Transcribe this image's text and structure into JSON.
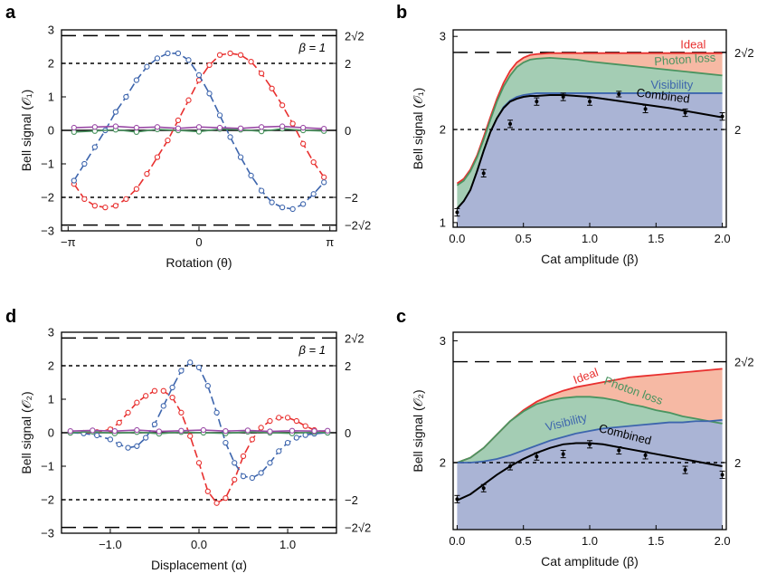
{
  "colors": {
    "red": "#e8302f",
    "blue": "#3d65ad",
    "green": "#4a9460",
    "purple": "#9a4aa6",
    "ideal_fill": "#f6b9a4",
    "photon_fill": "#a4cdb4",
    "visibility_fill": "#aab4d5"
  },
  "chart_data": [
    {
      "panel": "a",
      "type": "line",
      "annotation": "β = 1",
      "xlabel": "Rotation (θ)",
      "ylabel": "Bell signal (𝒪₁)",
      "xlim": [
        -3.3,
        3.3
      ],
      "ylim": [
        -3,
        3
      ],
      "x_ticks": [
        {
          "v": -3.14159,
          "t": "−π"
        },
        {
          "v": 0,
          "t": "0"
        },
        {
          "v": 3.14159,
          "t": "π"
        }
      ],
      "y_ticks": [
        -3,
        -2,
        -1,
        0,
        1,
        2,
        3
      ],
      "y_tick_labels": [
        "−3",
        "−2",
        "−1",
        "0",
        "1",
        "2",
        "3"
      ],
      "right_ticks": [
        {
          "v": 2.828,
          "t": "2√2"
        },
        {
          "v": 2,
          "t": "2"
        },
        {
          "v": 0,
          "t": "0"
        },
        {
          "v": -2,
          "t": "−2"
        },
        {
          "v": -2.828,
          "t": "−2√2"
        }
      ],
      "series": [
        {
          "color": "red",
          "x": [
            -3.0,
            -2.75,
            -2.5,
            -2.25,
            -2.0,
            -1.75,
            -1.5,
            -1.25,
            -1.0,
            -0.75,
            -0.5,
            -0.25,
            0.0,
            0.25,
            0.5,
            0.75,
            1.0,
            1.25,
            1.5,
            1.75,
            2.0,
            2.25,
            2.5,
            2.75,
            3.0
          ],
          "y": [
            -1.6,
            -2.05,
            -2.25,
            -2.3,
            -2.25,
            -2.05,
            -1.75,
            -1.3,
            -0.8,
            -0.3,
            0.3,
            0.9,
            1.5,
            1.95,
            2.25,
            2.3,
            2.25,
            2.05,
            1.7,
            1.25,
            0.75,
            0.2,
            -0.4,
            -0.95,
            -1.4
          ]
        },
        {
          "color": "blue",
          "x": [
            -3.0,
            -2.75,
            -2.5,
            -2.25,
            -2.0,
            -1.75,
            -1.5,
            -1.25,
            -1.0,
            -0.75,
            -0.5,
            -0.25,
            0.0,
            0.25,
            0.5,
            0.75,
            1.0,
            1.25,
            1.5,
            1.75,
            2.0,
            2.25,
            2.5,
            2.75,
            3.0
          ],
          "y": [
            -1.5,
            -1.0,
            -0.5,
            0.0,
            0.55,
            1.0,
            1.5,
            1.9,
            2.15,
            2.3,
            2.3,
            2.1,
            1.65,
            1.1,
            0.45,
            -0.2,
            -0.8,
            -1.35,
            -1.8,
            -2.15,
            -2.3,
            -2.35,
            -2.2,
            -1.9,
            -1.55
          ]
        },
        {
          "color": "green",
          "x": [
            -3.0,
            -2.5,
            -2.0,
            -1.5,
            -1.0,
            -0.5,
            0.0,
            0.5,
            1.0,
            1.5,
            2.0,
            2.5,
            3.0
          ],
          "y": [
            -0.05,
            -0.02,
            0.02,
            -0.05,
            0.03,
            0.0,
            -0.04,
            0.04,
            0.02,
            -0.03,
            0.05,
            0.0,
            -0.02
          ]
        },
        {
          "color": "purple",
          "x": [
            -3.0,
            -2.5,
            -2.0,
            -1.5,
            -1.0,
            -0.5,
            0.0,
            0.5,
            1.0,
            1.5,
            2.0,
            2.5,
            3.0
          ],
          "y": [
            0.08,
            0.1,
            0.12,
            0.08,
            0.1,
            0.06,
            0.1,
            0.08,
            0.06,
            0.1,
            0.12,
            0.08,
            0.05
          ]
        }
      ]
    },
    {
      "panel": "b",
      "type": "area",
      "xlabel": "Cat amplitude (β)",
      "ylabel": "Bell signal (𝒪₁)",
      "xlim": [
        -0.03,
        2.03
      ],
      "ylim": [
        0.95,
        3.07
      ],
      "x_ticks": [
        {
          "v": 0,
          "t": "0.0"
        },
        {
          "v": 0.5,
          "t": "0.5"
        },
        {
          "v": 1,
          "t": "1.0"
        },
        {
          "v": 1.5,
          "t": "1.5"
        },
        {
          "v": 2,
          "t": "2.0"
        }
      ],
      "y_ticks": [
        1,
        2,
        3
      ],
      "y_tick_labels": [
        "1",
        "2",
        "3"
      ],
      "right_ticks": [
        {
          "v": 2.828,
          "t": "2√2"
        },
        {
          "v": 2,
          "t": "2"
        }
      ],
      "curve_labels": [
        "Ideal",
        "Photon loss",
        "Visibility",
        "Combined"
      ],
      "x": [
        0,
        0.05,
        0.1,
        0.15,
        0.2,
        0.25,
        0.3,
        0.35,
        0.4,
        0.45,
        0.5,
        0.55,
        0.6,
        0.7,
        0.8,
        0.9,
        1.0,
        1.2,
        1.4,
        1.6,
        1.8,
        2.0
      ],
      "ideal": [
        1.42,
        1.47,
        1.57,
        1.72,
        1.92,
        2.13,
        2.33,
        2.5,
        2.63,
        2.72,
        2.77,
        2.8,
        2.81,
        2.82,
        2.82,
        2.82,
        2.82,
        2.82,
        2.82,
        2.82,
        2.82,
        2.82
      ],
      "photon_loss": [
        1.4,
        1.45,
        1.55,
        1.7,
        1.89,
        2.1,
        2.3,
        2.46,
        2.58,
        2.67,
        2.72,
        2.75,
        2.76,
        2.77,
        2.76,
        2.75,
        2.73,
        2.7,
        2.67,
        2.64,
        2.61,
        2.58
      ],
      "visibility": [
        1.15,
        1.23,
        1.35,
        1.55,
        1.77,
        1.97,
        2.12,
        2.24,
        2.31,
        2.35,
        2.37,
        2.38,
        2.39,
        2.39,
        2.39,
        2.39,
        2.39,
        2.39,
        2.39,
        2.39,
        2.39,
        2.39
      ],
      "combined": [
        1.15,
        1.23,
        1.35,
        1.55,
        1.77,
        1.97,
        2.12,
        2.23,
        2.3,
        2.33,
        2.35,
        2.36,
        2.36,
        2.37,
        2.37,
        2.36,
        2.35,
        2.31,
        2.27,
        2.23,
        2.18,
        2.13
      ],
      "points": {
        "x": [
          0.0,
          0.2,
          0.4,
          0.6,
          0.8,
          1.0,
          1.22,
          1.42,
          1.72,
          2.0
        ],
        "y": [
          1.11,
          1.53,
          2.06,
          2.3,
          2.35,
          2.3,
          2.38,
          2.22,
          2.18,
          2.14
        ],
        "err": [
          0.04,
          0.04,
          0.04,
          0.04,
          0.04,
          0.04,
          0.03,
          0.04,
          0.04,
          0.04
        ]
      }
    },
    {
      "panel": "d",
      "type": "line",
      "annotation": "β = 1",
      "xlabel": "Displacement (α)",
      "ylabel": "Bell signal (𝒪₂)",
      "xlim": [
        -1.55,
        1.55
      ],
      "ylim": [
        -3,
        3
      ],
      "x_ticks": [
        {
          "v": -1,
          "t": "−1.0"
        },
        {
          "v": 0,
          "t": "0.0"
        },
        {
          "v": 1,
          "t": "1.0"
        }
      ],
      "y_ticks": [
        -3,
        -2,
        -1,
        0,
        1,
        2,
        3
      ],
      "y_tick_labels": [
        "−3",
        "−2",
        "−1",
        "0",
        "1",
        "2",
        "3"
      ],
      "right_ticks": [
        {
          "v": 2.828,
          "t": "2√2"
        },
        {
          "v": 2,
          "t": "2"
        },
        {
          "v": 0,
          "t": "0"
        },
        {
          "v": -2,
          "t": "−2"
        },
        {
          "v": -2.828,
          "t": "−2√2"
        }
      ],
      "series": [
        {
          "color": "red",
          "x": [
            -1.45,
            -1.3,
            -1.15,
            -1.0,
            -0.9,
            -0.8,
            -0.7,
            -0.6,
            -0.5,
            -0.4,
            -0.3,
            -0.2,
            -0.1,
            0.0,
            0.1,
            0.2,
            0.3,
            0.4,
            0.5,
            0.6,
            0.7,
            0.8,
            0.9,
            1.0,
            1.1,
            1.2,
            1.3,
            1.45
          ],
          "y": [
            0.0,
            0.0,
            0.02,
            0.1,
            0.3,
            0.6,
            0.9,
            1.1,
            1.25,
            1.25,
            1.05,
            0.6,
            -0.1,
            -0.9,
            -1.75,
            -2.1,
            -1.95,
            -1.4,
            -0.7,
            -0.2,
            0.15,
            0.35,
            0.45,
            0.45,
            0.35,
            0.2,
            0.08,
            0.02
          ]
        },
        {
          "color": "blue",
          "x": [
            -1.45,
            -1.3,
            -1.15,
            -1.0,
            -0.9,
            -0.8,
            -0.7,
            -0.6,
            -0.5,
            -0.4,
            -0.3,
            -0.2,
            -0.1,
            0.0,
            0.1,
            0.2,
            0.3,
            0.4,
            0.5,
            0.6,
            0.7,
            0.8,
            0.9,
            1.0,
            1.1,
            1.2,
            1.3,
            1.45
          ],
          "y": [
            0.0,
            -0.02,
            -0.08,
            -0.2,
            -0.35,
            -0.45,
            -0.4,
            -0.15,
            0.25,
            0.8,
            1.35,
            1.85,
            2.1,
            1.95,
            1.4,
            0.6,
            -0.3,
            -0.9,
            -1.3,
            -1.35,
            -1.2,
            -0.9,
            -0.55,
            -0.3,
            -0.15,
            -0.07,
            -0.03,
            0.0
          ]
        },
        {
          "color": "green",
          "x": [
            -1.45,
            -1.2,
            -0.95,
            -0.7,
            -0.45,
            -0.2,
            0.05,
            0.3,
            0.55,
            0.8,
            1.05,
            1.3,
            1.45
          ],
          "y": [
            0.0,
            0.03,
            -0.02,
            0.02,
            -0.03,
            0.02,
            0.0,
            -0.02,
            0.03,
            0.0,
            -0.02,
            0.02,
            0.0
          ]
        },
        {
          "color": "purple",
          "x": [
            -1.45,
            -1.2,
            -0.95,
            -0.7,
            -0.45,
            -0.2,
            0.05,
            0.3,
            0.55,
            0.8,
            1.05,
            1.3,
            1.45
          ],
          "y": [
            0.05,
            0.07,
            0.05,
            0.08,
            0.04,
            0.06,
            0.08,
            0.05,
            0.07,
            0.04,
            0.06,
            0.05,
            0.06
          ]
        }
      ]
    },
    {
      "panel": "c",
      "type": "area",
      "xlabel": "Cat amplitude (β)",
      "ylabel": "Bell signal (𝒪₂)",
      "xlim": [
        -0.03,
        2.03
      ],
      "ylim": [
        1.45,
        3.07
      ],
      "x_ticks": [
        {
          "v": 0,
          "t": "0.0"
        },
        {
          "v": 0.5,
          "t": "0.5"
        },
        {
          "v": 1,
          "t": "1.0"
        },
        {
          "v": 1.5,
          "t": "1.5"
        },
        {
          "v": 2,
          "t": "2.0"
        }
      ],
      "y_ticks": [
        2,
        3
      ],
      "y_tick_labels": [
        "2",
        "3"
      ],
      "right_ticks": [
        {
          "v": 2.828,
          "t": "2√2"
        },
        {
          "v": 2,
          "t": "2"
        }
      ],
      "curve_labels": [
        "Ideal",
        "Photon loss",
        "Visibility",
        "Combined"
      ],
      "x": [
        0,
        0.1,
        0.2,
        0.3,
        0.4,
        0.5,
        0.6,
        0.7,
        0.8,
        0.9,
        1.0,
        1.1,
        1.2,
        1.3,
        1.4,
        1.5,
        1.6,
        1.7,
        1.8,
        1.9,
        2.0
      ],
      "ideal": [
        2.0,
        2.04,
        2.12,
        2.23,
        2.34,
        2.43,
        2.5,
        2.55,
        2.59,
        2.62,
        2.64,
        2.66,
        2.68,
        2.7,
        2.71,
        2.72,
        2.73,
        2.74,
        2.75,
        2.76,
        2.77
      ],
      "photon_loss": [
        2.0,
        2.04,
        2.12,
        2.23,
        2.34,
        2.42,
        2.48,
        2.51,
        2.53,
        2.54,
        2.54,
        2.53,
        2.51,
        2.48,
        2.46,
        2.43,
        2.41,
        2.38,
        2.36,
        2.34,
        2.32
      ],
      "visibility": [
        2.0,
        2.0,
        2.01,
        2.03,
        2.06,
        2.1,
        2.14,
        2.18,
        2.21,
        2.24,
        2.26,
        2.28,
        2.29,
        2.3,
        2.31,
        2.32,
        2.33,
        2.33,
        2.34,
        2.34,
        2.35
      ],
      "combined": [
        1.69,
        1.74,
        1.82,
        1.9,
        1.97,
        2.03,
        2.08,
        2.12,
        2.15,
        2.16,
        2.16,
        2.15,
        2.13,
        2.11,
        2.09,
        2.07,
        2.05,
        2.03,
        2.01,
        1.99,
        1.97
      ],
      "points": {
        "x": [
          0.0,
          0.2,
          0.4,
          0.6,
          0.8,
          1.0,
          1.22,
          1.42,
          1.72,
          2.0
        ],
        "y": [
          1.7,
          1.79,
          1.97,
          2.05,
          2.07,
          2.15,
          2.1,
          2.06,
          1.94,
          1.9
        ],
        "err": [
          0.03,
          0.03,
          0.03,
          0.03,
          0.03,
          0.03,
          0.03,
          0.03,
          0.03,
          0.03
        ]
      }
    }
  ]
}
